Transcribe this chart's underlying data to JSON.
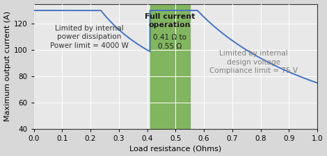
{
  "xlabel": "Load resistance (Ohms)",
  "ylabel": "Maximum output current (A)",
  "xlim": [
    0.0,
    1.0
  ],
  "ylim": [
    40,
    135
  ],
  "yticks": [
    40,
    60,
    80,
    100,
    120
  ],
  "xticks": [
    0.0,
    0.1,
    0.2,
    0.3,
    0.4,
    0.5,
    0.6,
    0.7,
    0.8,
    0.9,
    1.0
  ],
  "power_limit": 4000,
  "compliance_voltage": 75,
  "I_max": 130,
  "R_green_start": 0.41,
  "R_green_end": 0.55,
  "line_color": "#4472C4",
  "green_color": "#70AD47",
  "green_alpha": 0.85,
  "axes_bg_color": "#e8e8e8",
  "grid_color": "#ffffff",
  "fig_bg_color": "#d8d8d8",
  "text_left_line1": "Limited by internal",
  "text_left_line2": "power dissipation",
  "text_left_line3": "Power limit = 4000 W",
  "text_green_bold": "Full current\noperation",
  "text_green_normal": "0.41 Ω to\n0.55 Ω",
  "text_right_line1": "Limited by internal\ndesign voltage",
  "text_right_line3": "Compliance limit = 75 V",
  "label_fontsize": 8,
  "tick_fontsize": 7.5,
  "annot_fontsize": 7.5
}
